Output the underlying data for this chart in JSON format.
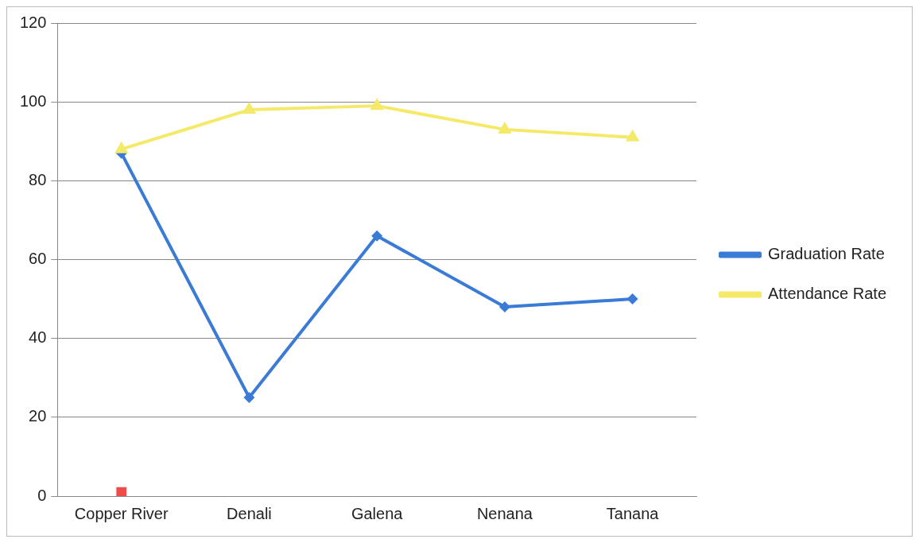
{
  "chart_data": {
    "type": "line",
    "categories": [
      "Copper River",
      "Denali",
      "Galena",
      "Nenana",
      "Tanana"
    ],
    "series": [
      {
        "name": "Graduation Rate",
        "color": "#3a7bd5",
        "values": [
          87,
          25,
          66,
          48,
          50
        ],
        "marker": "diamond"
      },
      {
        "name": "Attendance Rate",
        "color": "#f5e96a",
        "values": [
          88,
          98,
          99,
          93,
          91
        ],
        "marker": "triangle"
      },
      {
        "type": "scatter",
        "color": "#f04a4a",
        "values": [
          1,
          null,
          null,
          null,
          null
        ],
        "marker": "square"
      }
    ],
    "ylim": [
      0,
      120
    ],
    "yticks": [
      0,
      20,
      40,
      60,
      80,
      100,
      120
    ],
    "grid": "y",
    "legend": "right"
  }
}
